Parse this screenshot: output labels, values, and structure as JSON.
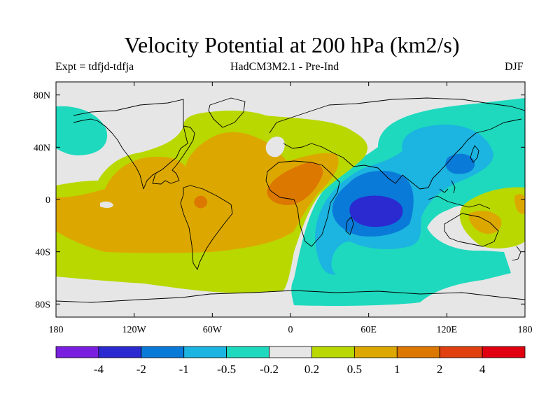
{
  "title": "Velocity Potential at 200 hPa (km2/s)",
  "subtitle_left": "Expt = tdfjd-tdfja",
  "subtitle_center": "HadCM3M2.1 - Pre-Ind",
  "subtitle_right": "DJF",
  "colors": {
    "ocean_bg": "#e6e6e6",
    "neg4": "#7a1fe0",
    "neg3": "#2a2ad0",
    "neg2": "#0a7ad8",
    "neg1": "#1cb4e0",
    "neg0": "#1ed9be",
    "pos0": "#b8d800",
    "pos1": "#dca800",
    "pos2": "#dc7800",
    "pos3": "#e04010",
    "pos4": "#e00010"
  },
  "chart_data": {
    "type": "heatmap",
    "projection": "equirectangular",
    "xlim": [
      -180,
      180
    ],
    "ylim": [
      -90,
      90
    ],
    "x_ticks": [
      {
        "value": -180,
        "label": "180"
      },
      {
        "value": -120,
        "label": "120W"
      },
      {
        "value": -60,
        "label": "60W"
      },
      {
        "value": 0,
        "label": "0"
      },
      {
        "value": 60,
        "label": "60E"
      },
      {
        "value": 120,
        "label": "120E"
      },
      {
        "value": 180,
        "label": "180"
      }
    ],
    "y_ticks": [
      {
        "value": 80,
        "label": "80N"
      },
      {
        "value": 40,
        "label": "40N"
      },
      {
        "value": 0,
        "label": "0"
      },
      {
        "value": -40,
        "label": "40S"
      },
      {
        "value": -80,
        "label": "80S"
      }
    ],
    "colorbar": {
      "colors": [
        "#7a1fe0",
        "#2a2ad0",
        "#0a7ad8",
        "#1cb4e0",
        "#1ed9be",
        "#e6e6e6",
        "#b8d800",
        "#dca800",
        "#dc7800",
        "#e04010",
        "#e00010"
      ],
      "labels": [
        "-4",
        "-2",
        "-1",
        "-0.5",
        "-0.2",
        "0.2",
        "0.5",
        "1",
        "2",
        "4"
      ]
    }
  }
}
